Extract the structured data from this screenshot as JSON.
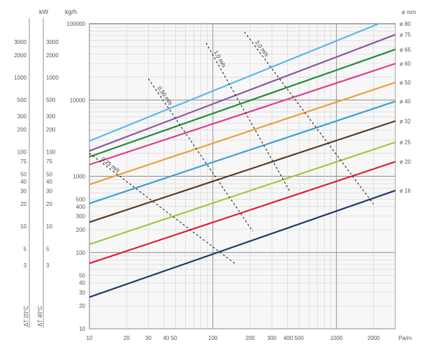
{
  "chart_data": {
    "type": "line",
    "x_unit": "Pa/m",
    "y_unit": "kg/h",
    "x_scale": "log",
    "y_scale": "log",
    "xlim": [
      10,
      3000
    ],
    "ylim": [
      10,
      100000
    ],
    "x_tick_labels": [
      "10",
      "20",
      "30",
      "40 50",
      "100",
      "200",
      "300",
      "400 500",
      "1000",
      "2000",
      "Pa/m"
    ],
    "y_tick_labels": [
      "100000",
      "10000",
      "1000",
      "500",
      "400",
      "300",
      "200",
      "100",
      "50",
      "40",
      "30",
      "20",
      "10"
    ],
    "series_header": "ø mm",
    "series": [
      {
        "name": "ø 80",
        "color": "#5bb8e6",
        "points": [
          [
            10,
            2900
          ],
          [
            2200,
            100000
          ]
        ]
      },
      {
        "name": "ø 75",
        "color": "#8e55a2",
        "points": [
          [
            10,
            2150
          ],
          [
            3000,
            72000
          ]
        ]
      },
      {
        "name": "ø 65",
        "color": "#1f8a3a",
        "points": [
          [
            10,
            1800
          ],
          [
            3000,
            46000
          ]
        ]
      },
      {
        "name": "ø 60",
        "color": "#e23a8e",
        "points": [
          [
            10,
            1420
          ],
          [
            3000,
            30000
          ]
        ]
      },
      {
        "name": "ø 50",
        "color": "#f39a38",
        "points": [
          [
            10,
            780
          ],
          [
            3000,
            17000
          ]
        ]
      },
      {
        "name": "ø 40",
        "color": "#3a9fd8",
        "points": [
          [
            10,
            440
          ],
          [
            3000,
            9600
          ]
        ]
      },
      {
        "name": "ø 32",
        "color": "#5a3a22",
        "points": [
          [
            10,
            250
          ],
          [
            3000,
            5300
          ]
        ]
      },
      {
        "name": "ø 25",
        "color": "#9acd3c",
        "points": [
          [
            10,
            128
          ],
          [
            3000,
            2800
          ]
        ]
      },
      {
        "name": "ø 20",
        "color": "#e21d3d",
        "points": [
          [
            10,
            72
          ],
          [
            3000,
            1550
          ]
        ]
      },
      {
        "name": "ø 16",
        "color": "#1e3a6a",
        "points": [
          [
            10,
            26
          ],
          [
            3000,
            650
          ]
        ]
      }
    ],
    "velocity_lines": [
      {
        "name": "0,25 m/s",
        "points": [
          [
            10,
            2000
          ],
          [
            150,
            72
          ]
        ]
      },
      {
        "name": "0,50 m/s",
        "points": [
          [
            30,
            19000
          ],
          [
            210,
            190
          ]
        ]
      },
      {
        "name": "1,0 m/s",
        "points": [
          [
            88,
            56000
          ],
          [
            420,
            630
          ]
        ]
      },
      {
        "name": "2,0 m/s",
        "points": [
          [
            180,
            78000
          ],
          [
            2000,
            430
          ]
        ]
      }
    ],
    "left_scale_kw_title": "kW",
    "left_scale_dt20": {
      "label": "ΔT 20°C",
      "ticks": [
        "3000",
        "2000",
        "1000",
        "500",
        "300",
        "200",
        "100",
        "75",
        "50",
        "40",
        "30",
        "20",
        "10",
        "5",
        "3"
      ]
    },
    "left_scale_dt40": {
      "label": "ΔT 40°C",
      "ticks": [
        "3000",
        "2000",
        "1000",
        "500",
        "300",
        "200",
        "100",
        "75",
        "50",
        "40",
        "30",
        "20",
        "10",
        "5",
        "3"
      ]
    },
    "grid": true
  }
}
